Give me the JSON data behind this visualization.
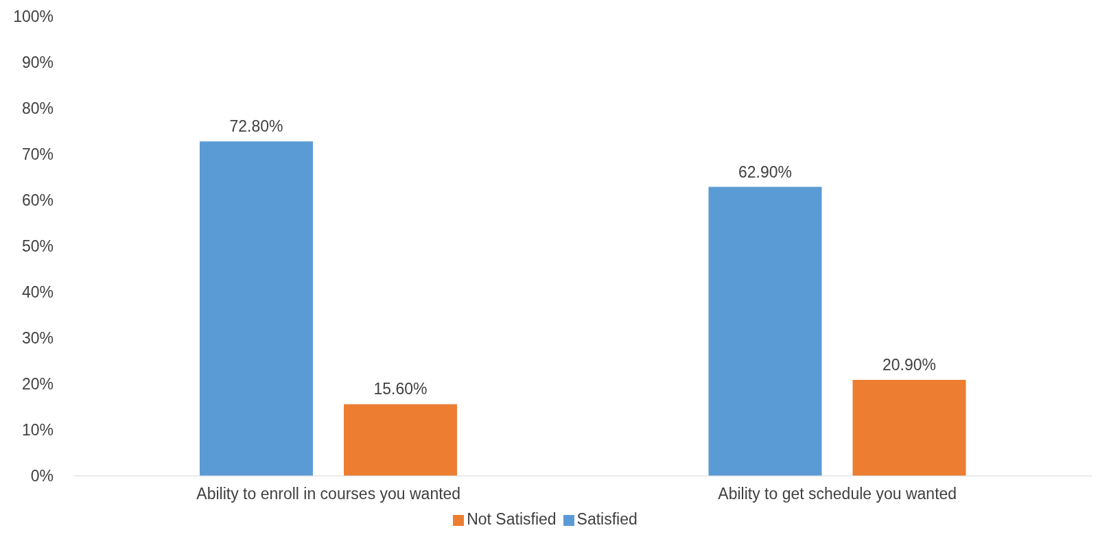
{
  "chart_data": {
    "type": "bar",
    "categories": [
      "Ability to enroll in courses you wanted",
      "Ability to get schedule you wanted"
    ],
    "series": [
      {
        "name": "Satisfied",
        "color": "#5b9bd5",
        "values": [
          72.8,
          62.9
        ],
        "value_labels": [
          "72.80%",
          "62.90%"
        ]
      },
      {
        "name": "Not Satisfied",
        "color": "#ed7d31",
        "values": [
          15.6,
          20.9
        ],
        "value_labels": [
          "15.60%",
          "20.90%"
        ]
      }
    ],
    "ylim": [
      0,
      100
    ],
    "yticks": [
      {
        "value": 0,
        "label": "0%"
      },
      {
        "value": 10,
        "label": "10%"
      },
      {
        "value": 20,
        "label": "20%"
      },
      {
        "value": 30,
        "label": "30%"
      },
      {
        "value": 40,
        "label": "40%"
      },
      {
        "value": 50,
        "label": "50%"
      },
      {
        "value": 60,
        "label": "60%"
      },
      {
        "value": 70,
        "label": "70%"
      },
      {
        "value": 80,
        "label": "80%"
      },
      {
        "value": 90,
        "label": "90%"
      },
      {
        "value": 100,
        "label": "100%"
      }
    ],
    "grid": false,
    "legend": "bottom"
  }
}
